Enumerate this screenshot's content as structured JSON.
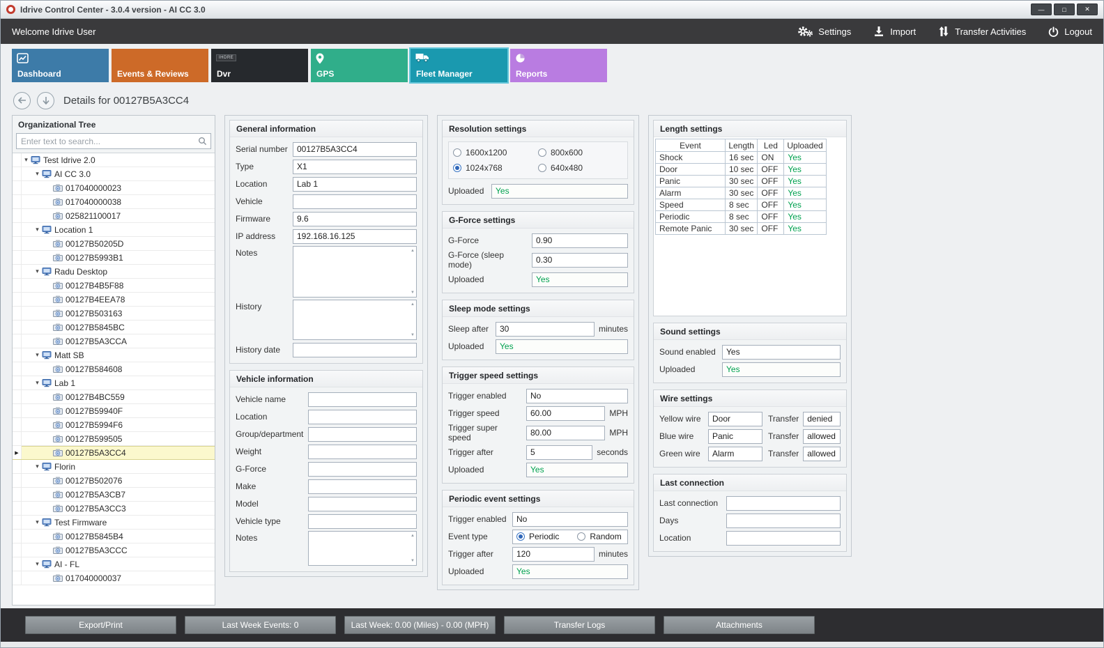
{
  "window": {
    "title": "Idrive Control Center - 3.0.4 version - AI CC 3.0",
    "controls": {
      "minimize": "—",
      "maximize": "□",
      "close": "✕"
    }
  },
  "topbar": {
    "welcome": "Welcome Idrive User",
    "actions": [
      {
        "id": "settings",
        "label": "Settings",
        "icon": "gears-icon"
      },
      {
        "id": "import",
        "label": "Import",
        "icon": "import-icon"
      },
      {
        "id": "transfer-activities",
        "label": "Transfer Activities",
        "icon": "transfer-arrows-icon"
      },
      {
        "id": "logout",
        "label": "Logout",
        "icon": "power-icon"
      }
    ]
  },
  "tabs": [
    {
      "id": "dashboard",
      "label": "Dashboard",
      "color": "#3d7ba8",
      "icon": "dashboard-chart-icon",
      "selected": false
    },
    {
      "id": "events-reviews",
      "label": "Events & Reviews",
      "color": "#cd6a28",
      "icon": null,
      "selected": false
    },
    {
      "id": "dvr",
      "label": "Dvr",
      "color": "#26292d",
      "icon": "dvr-brand-badge",
      "badge": "IHDRE",
      "selected": false
    },
    {
      "id": "gps",
      "label": "GPS",
      "color": "#30ae8a",
      "icon": "gps-pin-icon",
      "selected": false
    },
    {
      "id": "fleet-manager",
      "label": "Fleet Manager",
      "color": "#1a99af",
      "icon": "truck-icon",
      "selected": true
    },
    {
      "id": "reports",
      "label": "Reports",
      "color": "#b97ce1",
      "icon": "pie-chart-icon",
      "selected": false
    }
  ],
  "details_header": {
    "title": "Details for 00127B5A3CC4"
  },
  "icons": {
    "search": "search-magnifier-icon",
    "back": "back-arrow-icon",
    "down": "down-arrow-icon"
  },
  "org_tree": {
    "title": "Organizational Tree",
    "search_placeholder": "Enter text to search...",
    "group_icon": "organization-icon",
    "device_icon": "camera-device-icon",
    "items": [
      {
        "label": "Test Idrive 2.0",
        "level": 0,
        "type": "group"
      },
      {
        "label": "AI CC 3.0",
        "level": 1,
        "type": "group"
      },
      {
        "label": "017040000023",
        "level": 2,
        "type": "device"
      },
      {
        "label": "017040000038",
        "level": 2,
        "type": "device"
      },
      {
        "label": "025821100017",
        "level": 2,
        "type": "device"
      },
      {
        "label": "Location 1",
        "level": 1,
        "type": "group"
      },
      {
        "label": "00127B50205D",
        "level": 2,
        "type": "device"
      },
      {
        "label": "00127B5993B1",
        "level": 2,
        "type": "device"
      },
      {
        "label": "Radu Desktop",
        "level": 1,
        "type": "group"
      },
      {
        "label": "00127B4B5F88",
        "level": 2,
        "type": "device"
      },
      {
        "label": "00127B4EEA78",
        "level": 2,
        "type": "device"
      },
      {
        "label": "00127B503163",
        "level": 2,
        "type": "device"
      },
      {
        "label": "00127B5845BC",
        "level": 2,
        "type": "device"
      },
      {
        "label": "00127B5A3CCA",
        "level": 2,
        "type": "device"
      },
      {
        "label": "Matt SB",
        "level": 1,
        "type": "group"
      },
      {
        "label": "00127B584608",
        "level": 2,
        "type": "device"
      },
      {
        "label": "Lab 1",
        "level": 1,
        "type": "group"
      },
      {
        "label": "00127B4BC559",
        "level": 2,
        "type": "device"
      },
      {
        "label": "00127B59940F",
        "level": 2,
        "type": "device"
      },
      {
        "label": "00127B5994F6",
        "level": 2,
        "type": "device"
      },
      {
        "label": "00127B599505",
        "level": 2,
        "type": "device"
      },
      {
        "label": "00127B5A3CC4",
        "level": 2,
        "type": "device",
        "selected": true
      },
      {
        "label": "Florin",
        "level": 1,
        "type": "group"
      },
      {
        "label": "00127B502076",
        "level": 2,
        "type": "device"
      },
      {
        "label": "00127B5A3CB7",
        "level": 2,
        "type": "device"
      },
      {
        "label": "00127B5A3CC3",
        "level": 2,
        "type": "device"
      },
      {
        "label": "Test Firmware",
        "level": 1,
        "type": "group"
      },
      {
        "label": "00127B5845B4",
        "level": 2,
        "type": "device"
      },
      {
        "label": "00127B5A3CCC",
        "level": 2,
        "type": "device"
      },
      {
        "label": "AI - FL",
        "level": 1,
        "type": "group"
      },
      {
        "label": "017040000037",
        "level": 2,
        "type": "device"
      }
    ]
  },
  "general_information": {
    "title": "General information",
    "fields": [
      {
        "label": "Serial number",
        "value": "00127B5A3CC4"
      },
      {
        "label": "Type",
        "value": "X1"
      },
      {
        "label": "Location",
        "value": "Lab 1"
      },
      {
        "label": "Vehicle",
        "value": ""
      },
      {
        "label": "Firmware",
        "value": "9.6"
      },
      {
        "label": "IP address",
        "value": "192.168.16.125"
      },
      {
        "label": "Notes",
        "value": "",
        "multiline": true
      },
      {
        "label": "History",
        "value": "",
        "multiline": true
      },
      {
        "label": "History date",
        "value": ""
      }
    ]
  },
  "vehicle_information": {
    "title": "Vehicle information",
    "fields": [
      {
        "label": "Vehicle name",
        "value": ""
      },
      {
        "label": "Location",
        "value": ""
      },
      {
        "label": "Group/department",
        "value": ""
      },
      {
        "label": "Weight",
        "value": ""
      },
      {
        "label": "G-Force",
        "value": ""
      },
      {
        "label": "Make",
        "value": ""
      },
      {
        "label": "Model",
        "value": ""
      },
      {
        "label": "Vehicle type",
        "value": ""
      },
      {
        "label": "Notes",
        "value": "",
        "multiline": true
      }
    ]
  },
  "resolution_settings": {
    "title": "Resolution settings",
    "options": [
      {
        "label": "1600x1200",
        "selected": false
      },
      {
        "label": "1024x768",
        "selected": true
      },
      {
        "label": "800x600",
        "selected": false
      },
      {
        "label": "640x480",
        "selected": false
      }
    ],
    "fields": [
      {
        "label": "Uploaded",
        "value": "Yes",
        "green": true
      }
    ]
  },
  "gforce_settings": {
    "title": "G-Force settings",
    "fields": [
      {
        "label": "G-Force",
        "value": "0.90"
      },
      {
        "label": "G-Force (sleep mode)",
        "value": "0.30"
      },
      {
        "label": "Uploaded",
        "value": "Yes",
        "green": true
      }
    ]
  },
  "sleep_mode_settings": {
    "title": "Sleep mode settings",
    "fields": [
      {
        "label": "Sleep after",
        "value": "30",
        "unit": "minutes"
      },
      {
        "label": "Uploaded",
        "value": "Yes",
        "green": true
      }
    ]
  },
  "trigger_speed_settings": {
    "title": "Trigger speed settings",
    "fields": [
      {
        "label": "Trigger enabled",
        "value": "No"
      },
      {
        "label": "Trigger speed",
        "value": "60.00",
        "unit": "MPH"
      },
      {
        "label": "Trigger super speed",
        "value": "80.00",
        "unit": "MPH"
      },
      {
        "label": "Trigger after",
        "value": "5",
        "unit": "seconds"
      },
      {
        "label": "Uploaded",
        "value": "Yes",
        "green": true
      }
    ]
  },
  "periodic_event_settings": {
    "title": "Periodic event settings",
    "fields_before": [
      {
        "label": "Trigger enabled",
        "value": "No"
      }
    ],
    "event_type": {
      "label": "Event type",
      "options": [
        {
          "label": "Periodic",
          "selected": true
        },
        {
          "label": "Random",
          "selected": false
        }
      ]
    },
    "fields_after": [
      {
        "label": "Trigger after",
        "value": "120",
        "unit": "minutes"
      },
      {
        "label": "Uploaded",
        "value": "Yes",
        "green": true
      }
    ]
  },
  "length_settings": {
    "title": "Length settings",
    "columns": [
      "Event",
      "Length",
      "Led",
      "Uploaded"
    ],
    "rows": [
      [
        "Shock",
        "16 sec",
        "ON",
        "Yes"
      ],
      [
        "Door",
        "10 sec",
        "OFF",
        "Yes"
      ],
      [
        "Panic",
        "30 sec",
        "OFF",
        "Yes"
      ],
      [
        "Alarm",
        "30 sec",
        "OFF",
        "Yes"
      ],
      [
        "Speed",
        "8 sec",
        "OFF",
        "Yes"
      ],
      [
        "Periodic",
        "8 sec",
        "OFF",
        "Yes"
      ],
      [
        "Remote Panic",
        "30 sec",
        "OFF",
        "Yes"
      ]
    ]
  },
  "sound_settings": {
    "title": "Sound settings",
    "fields": [
      {
        "label": "Sound enabled",
        "value": "Yes"
      },
      {
        "label": "Uploaded",
        "value": "Yes",
        "green": true
      }
    ]
  },
  "wire_settings": {
    "title": "Wire settings",
    "transfer_label": "Transfer",
    "rows": [
      {
        "wire": "Yellow wire",
        "value": "Door",
        "transfer": "denied"
      },
      {
        "wire": "Blue wire",
        "value": "Panic",
        "transfer": "allowed"
      },
      {
        "wire": "Green wire",
        "value": "Alarm",
        "transfer": "allowed"
      }
    ]
  },
  "last_connection": {
    "title": "Last connection",
    "fields": [
      {
        "label": "Last connection",
        "value": ""
      },
      {
        "label": "Days",
        "value": ""
      },
      {
        "label": "Location",
        "value": ""
      }
    ]
  },
  "bottombar": {
    "buttons": [
      "Export/Print",
      "Last Week Events: 0",
      "Last Week: 0.00 (Miles) - 0.00 (MPH)",
      "Transfer Logs",
      "Attachments"
    ]
  },
  "colors": {
    "accent_green": "#00A14F",
    "selected_tab_outline": "#66C7DB",
    "tree_selected_bg": "#FBF8CD",
    "topbar_bg": "#3A3A3C"
  }
}
